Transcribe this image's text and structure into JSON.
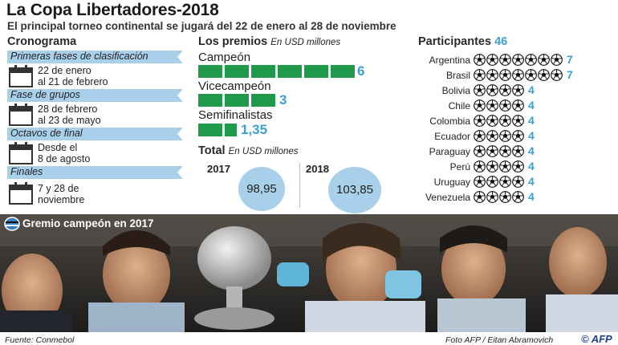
{
  "title": "La Copa Libertadores-2018",
  "subtitle": "El principal torneo continental se jugará del 22 de enero al 28 de noviembre",
  "cronograma": {
    "heading": "Cronograma",
    "phases": [
      {
        "name": "Primeras fases de clasificación",
        "dates": [
          "22 de enero",
          "al 21 de febrero"
        ]
      },
      {
        "name": "Fase de grupos",
        "dates": [
          "28 de febrero",
          "al 23 de mayo"
        ]
      },
      {
        "name": "Octavos de final",
        "dates": [
          "Desde el",
          "8 de agosto"
        ]
      },
      {
        "name": "Finales",
        "dates": [
          "7 y 28 de",
          "noviembre"
        ]
      }
    ]
  },
  "premios": {
    "heading": "Los premios",
    "unit": "En USD millones",
    "items": [
      {
        "label": "Campeón",
        "value": "6",
        "amount": 6
      },
      {
        "label": "Vicecampeón",
        "value": "3",
        "amount": 3
      },
      {
        "label": "Semifinalistas",
        "value": "1,35",
        "amount": 1.35
      }
    ],
    "total_heading": "Total",
    "total_unit": "En USD millones",
    "totals": [
      {
        "year": "2017",
        "value": "98,95",
        "amount": 98.95
      },
      {
        "year": "2018",
        "value": "103,85",
        "amount": 103.85
      }
    ],
    "bar_color": "#1f9a4b",
    "circle_color": "#a9d0ea"
  },
  "participantes": {
    "heading": "Participantes",
    "total": "46",
    "countries": [
      {
        "name": "Argentina",
        "count": "7",
        "n": 7
      },
      {
        "name": "Brasil",
        "count": "7",
        "n": 7
      },
      {
        "name": "Bolivia",
        "count": "4",
        "n": 4
      },
      {
        "name": "Chile",
        "count": "4",
        "n": 4
      },
      {
        "name": "Colombia",
        "count": "4",
        "n": 4
      },
      {
        "name": "Ecuador",
        "count": "4",
        "n": 4
      },
      {
        "name": "Paraguay",
        "count": "4",
        "n": 4
      },
      {
        "name": "Perú",
        "count": "4",
        "n": 4
      },
      {
        "name": "Uruguay",
        "count": "4",
        "n": 4
      },
      {
        "name": "Venezuela",
        "count": "4",
        "n": 4
      }
    ],
    "accent_color": "#3aa0cf"
  },
  "photo": {
    "caption": "Gremio campeón en 2017",
    "icon": "gremio-crest-icon"
  },
  "footer": {
    "source": "Fuente: Conmebol",
    "credit": "Foto AFP / Eitan Abramovich",
    "logo": "© AFP"
  }
}
